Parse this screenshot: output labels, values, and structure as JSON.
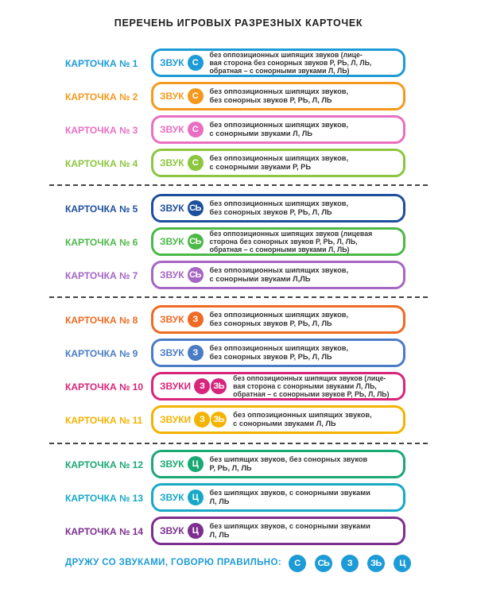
{
  "title": "ПЕРЕЧЕНЬ ИГРОВЫХ РАЗРЕЗНЫХ КАРТОЧЕК",
  "cards": [
    {
      "label": "КАРТОЧКА № 1",
      "word": "ЗВУК",
      "letters": [
        "С"
      ],
      "color": "#1d9bd6",
      "desc": "без оппозиционных шипящих звуков (лице-\nвая сторона без сонорных звуков Р, РЬ, Л, ЛЬ,\nобратная – с сонорными звуками Л, ЛЬ)"
    },
    {
      "label": "КАРТОЧКА № 2",
      "word": "ЗВУК",
      "letters": [
        "С"
      ],
      "color": "#f39a1e",
      "desc": "без оппозиционных шипящих звуков,\nбез сонорных звуков Р, РЬ, Л, ЛЬ"
    },
    {
      "label": "КАРТОЧКА № 3",
      "word": "ЗВУК",
      "letters": [
        "С"
      ],
      "color": "#e96fc2",
      "desc": "без оппозиционных шипящих звуков,\nс сонорными звуками Л, ЛЬ"
    },
    {
      "label": "КАРТОЧКА № 4",
      "word": "ЗВУК",
      "letters": [
        "С"
      ],
      "color": "#8cc63f",
      "desc": "без оппозиционных шипящих звуков,\nс сонорными звуками Р, РЬ"
    },
    {
      "label": "КАРТОЧКА № 5",
      "word": "ЗВУК",
      "letters": [
        "СЬ"
      ],
      "color": "#1c4f9c",
      "desc": "без оппозиционных шипящих звуков,\nбез сонорных звуков Р, РЬ, Л, ЛЬ"
    },
    {
      "label": "КАРТОЧКА № 6",
      "word": "ЗВУК",
      "letters": [
        "СЬ"
      ],
      "color": "#4cb848",
      "desc": "без оппозиционных шипящих звуков (лицевая\nсторона без сонорных звуков  Р, РЬ, Л, ЛЬ,\nобратная – с сонорными звуками Л, ЛЬ)"
    },
    {
      "label": "КАРТОЧКА № 7",
      "word": "ЗВУК",
      "letters": [
        "СЬ"
      ],
      "color": "#a566c4",
      "desc": "без оппозиционных шипящих звуков,\nс сонорными звуками Л,ЛЬ"
    },
    {
      "label": "КАРТОЧКА № 8",
      "word": "ЗВУК",
      "letters": [
        "З"
      ],
      "color": "#ef6a22",
      "desc": "без оппозиционных шипящих звуков,\nбез сонорных звуков Р, РЬ, Л, ЛЬ"
    },
    {
      "label": "КАРТОЧКА № 9",
      "word": "ЗВУК",
      "letters": [
        "З"
      ],
      "color": "#4a7cc6",
      "desc": "без оппозиционных шипящих звуков,\nбез сонорных звуков Р, РЬ, Л, ЛЬ"
    },
    {
      "label": "КАРТОЧКА № 10",
      "word": "ЗВУКИ",
      "letters": [
        "З",
        "ЗЬ"
      ],
      "color": "#d8257c",
      "desc": "без оппозиционных шипящих звуков (лице-\nвая сторона с сонорными звуками Л, ЛЬ,\nобратная –  с сонорными звуков Р, РЬ, Л, ЛЬ)"
    },
    {
      "label": "КАРТОЧКА № 11",
      "word": "ЗВУКИ",
      "letters": [
        "З",
        "ЗЬ"
      ],
      "color": "#f4b300",
      "desc": "без оппозиционных шипящих звуков,\nс сонорными звуками Л, ЛЬ"
    },
    {
      "label": "КАРТОЧКА № 12",
      "word": "ЗВУК",
      "letters": [
        "Ц"
      ],
      "color": "#1aa874",
      "desc": "без шипящих звуков, без сонорных звуков\nР, РЬ, Л, ЛЬ"
    },
    {
      "label": "КАРТОЧКА № 13",
      "word": "ЗВУК",
      "letters": [
        "Ц"
      ],
      "color": "#18a9c7",
      "desc": "без шипящих звуков, с сонорными звуками\nЛ, ЛЬ"
    },
    {
      "label": "КАРТОЧКА № 14",
      "word": "ЗВУК",
      "letters": [
        "Ц"
      ],
      "color": "#7d2f8f",
      "desc": "без шипящих звуков, с сонорными звуками\nЛ, ЛЬ"
    }
  ],
  "footer": {
    "text": "ДРУЖУ СО ЗВУКАМИ, ГОВОРЮ ПРАВИЛЬНО:",
    "circles": [
      {
        "letter": "С",
        "color": "#1d9bd6"
      },
      {
        "letter": "СЬ",
        "color": "#1d9bd6"
      },
      {
        "letter": "З",
        "color": "#1d9bd6"
      },
      {
        "letter": "ЗЬ",
        "color": "#1d9bd6"
      },
      {
        "letter": "Ц",
        "color": "#1d9bd6"
      }
    ]
  }
}
